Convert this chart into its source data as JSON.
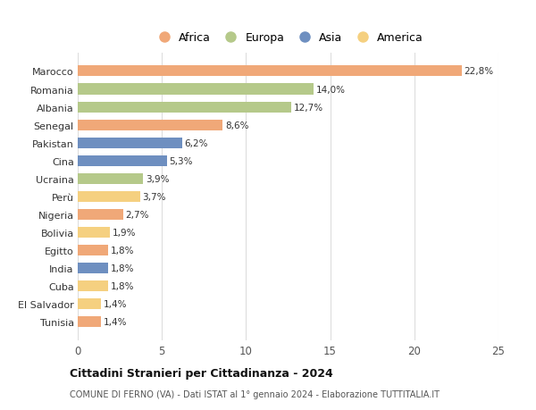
{
  "categories": [
    "Tunisia",
    "El Salvador",
    "Cuba",
    "India",
    "Egitto",
    "Bolivia",
    "Nigeria",
    "Perù",
    "Ucraina",
    "Cina",
    "Pakistan",
    "Senegal",
    "Albania",
    "Romania",
    "Marocco"
  ],
  "values": [
    1.4,
    1.4,
    1.8,
    1.8,
    1.8,
    1.9,
    2.7,
    3.7,
    3.9,
    5.3,
    6.2,
    8.6,
    12.7,
    14.0,
    22.8
  ],
  "labels": [
    "1,4%",
    "1,4%",
    "1,8%",
    "1,8%",
    "1,8%",
    "1,9%",
    "2,7%",
    "3,7%",
    "3,9%",
    "5,3%",
    "6,2%",
    "8,6%",
    "12,7%",
    "14,0%",
    "22,8%"
  ],
  "continents": [
    "Africa",
    "America",
    "America",
    "Asia",
    "Africa",
    "America",
    "Africa",
    "America",
    "Europa",
    "Asia",
    "Asia",
    "Africa",
    "Europa",
    "Europa",
    "Africa"
  ],
  "continent_colors": {
    "Africa": "#F0A878",
    "Europa": "#B5C98A",
    "Asia": "#6E8FC0",
    "America": "#F5D080"
  },
  "legend_order": [
    "Africa",
    "Europa",
    "Asia",
    "America"
  ],
  "xlim": [
    0,
    25
  ],
  "xticks": [
    0,
    5,
    10,
    15,
    20,
    25
  ],
  "title": "Cittadini Stranieri per Cittadinanza - 2024",
  "subtitle": "COMUNE DI FERNO (VA) - Dati ISTAT al 1° gennaio 2024 - Elaborazione TUTTITALIA.IT",
  "bar_height": 0.6,
  "background_color": "#ffffff",
  "grid_color": "#dddddd"
}
